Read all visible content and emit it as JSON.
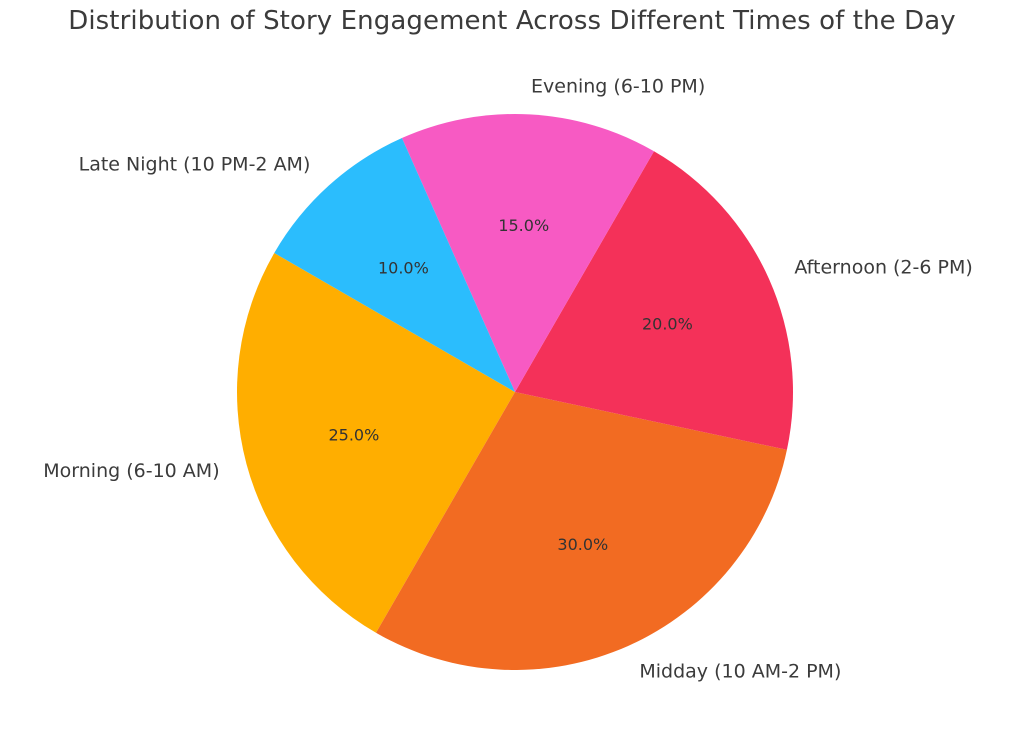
{
  "chart_data": {
    "type": "pie",
    "title": "Distribution of Story Engagement Across Different Times of the Day",
    "start_angle_deg": 150,
    "direction": "counterclockwise",
    "slices": [
      {
        "label": "Morning (6-10 AM)",
        "value": 25.0,
        "pct_text": "25.0%",
        "color": "#FFAE00"
      },
      {
        "label": "Midday (10 AM-2 PM)",
        "value": 30.0,
        "pct_text": "30.0%",
        "color": "#F26B22"
      },
      {
        "label": "Afternoon (2-6 PM)",
        "value": 20.0,
        "pct_text": "20.0%",
        "color": "#F43159"
      },
      {
        "label": "Evening (6-10 PM)",
        "value": 15.0,
        "pct_text": "15.0%",
        "color": "#F75AC3"
      },
      {
        "label": "Late Night (10 PM-2 AM)",
        "value": 10.0,
        "pct_text": "10.0%",
        "color": "#2BBDFD"
      }
    ]
  }
}
